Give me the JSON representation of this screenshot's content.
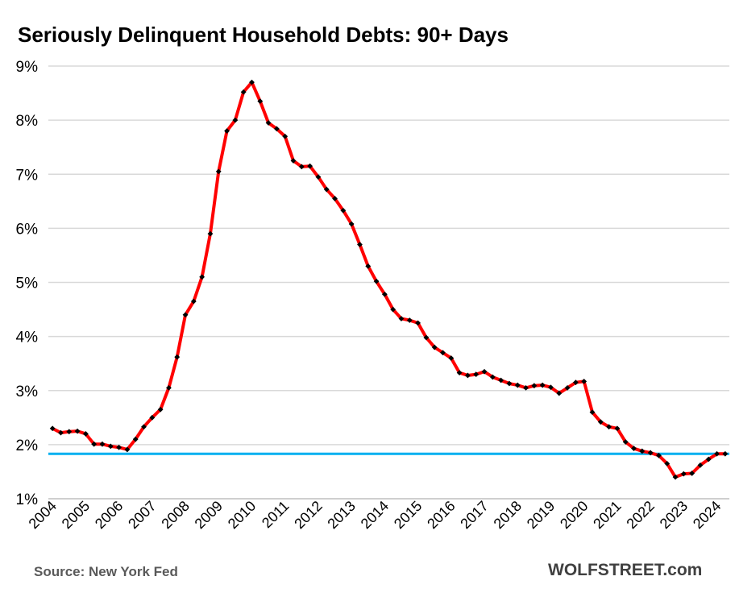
{
  "title": "Seriously Delinquent Household Debts: 90+ Days",
  "source": "Source: New York Fed",
  "brand": "WOLFSTREET.com",
  "colors": {
    "line": "#ff0000",
    "marker": "#000000",
    "reference": "#00b0f0",
    "grid": "#d9d9d9"
  },
  "chart_data": {
    "type": "line",
    "title": "Seriously Delinquent Household Debts: 90+ Days",
    "ylim": [
      1,
      9
    ],
    "y_ticks": [
      "1%",
      "2%",
      "3%",
      "4%",
      "5%",
      "6%",
      "7%",
      "8%",
      "9%"
    ],
    "x_ticks": [
      "2004",
      "2005",
      "2006",
      "2007",
      "2008",
      "2009",
      "2010",
      "2011",
      "2012",
      "2013",
      "2014",
      "2015",
      "2016",
      "2017",
      "2018",
      "2019",
      "2020",
      "2021",
      "2022",
      "2023",
      "2024"
    ],
    "grid": true,
    "reference_line": 1.83,
    "series": [
      {
        "values": [
          2.3,
          2.22,
          2.24,
          2.25,
          2.2,
          2.01,
          2.01,
          1.97,
          1.95,
          1.91,
          2.1,
          2.33,
          2.5,
          2.65,
          3.05,
          3.62,
          4.4,
          4.65,
          5.1,
          5.9,
          7.05,
          7.8,
          8.0,
          8.52,
          8.7,
          8.35,
          7.95,
          7.84,
          7.7,
          7.25,
          7.14,
          7.15,
          6.95,
          6.72,
          6.55,
          6.33,
          6.08,
          5.7,
          5.3,
          5.02,
          4.78,
          4.5,
          4.33,
          4.3,
          4.25,
          3.98,
          3.8,
          3.7,
          3.6,
          3.33,
          3.28,
          3.3,
          3.35,
          3.25,
          3.19,
          3.13,
          3.1,
          3.05,
          3.09,
          3.1,
          3.06,
          2.95,
          3.05,
          3.15,
          3.17,
          2.6,
          2.42,
          2.33,
          2.3,
          2.05,
          1.93,
          1.88,
          1.85,
          1.8,
          1.65,
          1.4,
          1.46,
          1.47,
          1.62,
          1.73,
          1.83,
          1.83
        ]
      }
    ]
  }
}
